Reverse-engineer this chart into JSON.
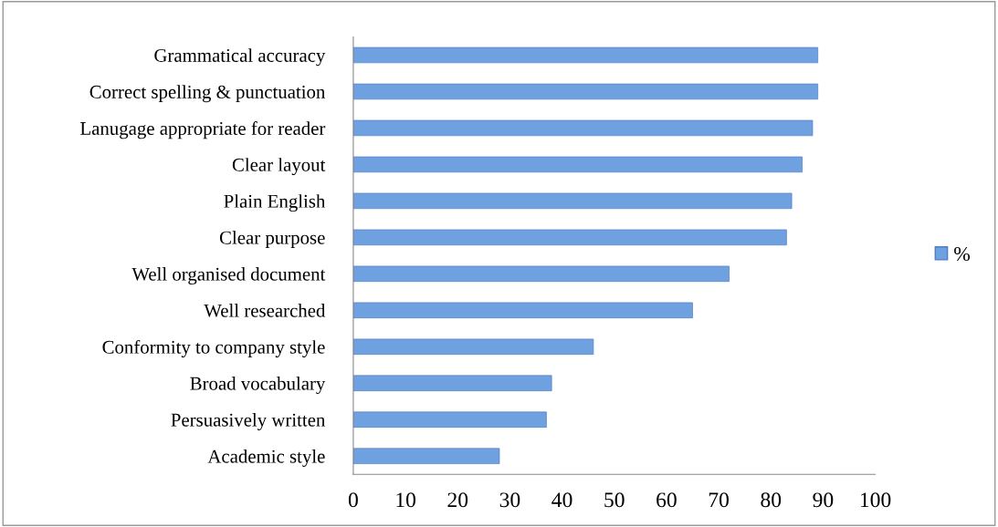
{
  "chart_data": {
    "type": "bar",
    "orientation": "horizontal",
    "categories": [
      "Grammatical accuracy",
      "Correct spelling & punctuation",
      "Lanugage appropriate for reader",
      "Clear layout",
      "Plain English",
      "Clear purpose",
      "Well organised document",
      "Well researched",
      "Conformity to company style",
      "Broad vocabulary",
      "Persuasively written",
      "Academic style"
    ],
    "series": [
      {
        "name": "%",
        "color": "#6fa0e0",
        "values": [
          89,
          89,
          88,
          86,
          84,
          83,
          72,
          65,
          46,
          38,
          37,
          28
        ]
      }
    ],
    "xlim": [
      0,
      100
    ],
    "xticks": [
      0,
      10,
      20,
      30,
      40,
      50,
      60,
      70,
      80,
      90,
      100
    ],
    "grid": false,
    "legend": "right"
  }
}
